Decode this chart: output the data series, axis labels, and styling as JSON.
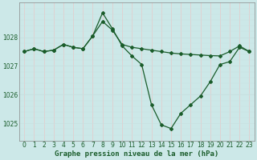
{
  "title": "Graphe pression niveau de la mer (hPa)",
  "background_color": "#cce8e8",
  "plot_bg_color": "#cce8e8",
  "line_color": "#1a5c2a",
  "grid_color_h": "#c8e0e0",
  "grid_color_v": "#e8c8c8",
  "ylim": [
    1024.4,
    1029.2
  ],
  "yticks": [
    1025,
    1026,
    1027,
    1028
  ],
  "xlim": [
    -0.5,
    23.5
  ],
  "xticks": [
    0,
    1,
    2,
    3,
    4,
    5,
    6,
    7,
    8,
    9,
    10,
    11,
    12,
    13,
    14,
    15,
    16,
    17,
    18,
    19,
    20,
    21,
    22,
    23
  ],
  "series1": [
    1027.5,
    1027.6,
    1027.5,
    1027.55,
    1027.75,
    1027.65,
    1027.6,
    1028.05,
    1028.55,
    1028.25,
    1027.75,
    1027.65,
    1027.6,
    1027.55,
    1027.5,
    1027.45,
    1027.42,
    1027.4,
    1027.38,
    1027.36,
    1027.35,
    1027.5,
    1027.7,
    1027.5
  ],
  "series2": [
    1027.5,
    1027.6,
    1027.5,
    1027.55,
    1027.75,
    1027.65,
    1027.6,
    1028.05,
    1028.85,
    1028.3,
    1027.7,
    1027.35,
    1027.05,
    1025.65,
    1024.95,
    1024.82,
    1025.35,
    1025.65,
    1025.95,
    1026.45,
    1027.05,
    1027.15,
    1027.65,
    1027.5
  ],
  "marker_size": 2.0,
  "line_width": 0.9,
  "tick_fontsize": 5.5,
  "title_fontsize": 6.5
}
